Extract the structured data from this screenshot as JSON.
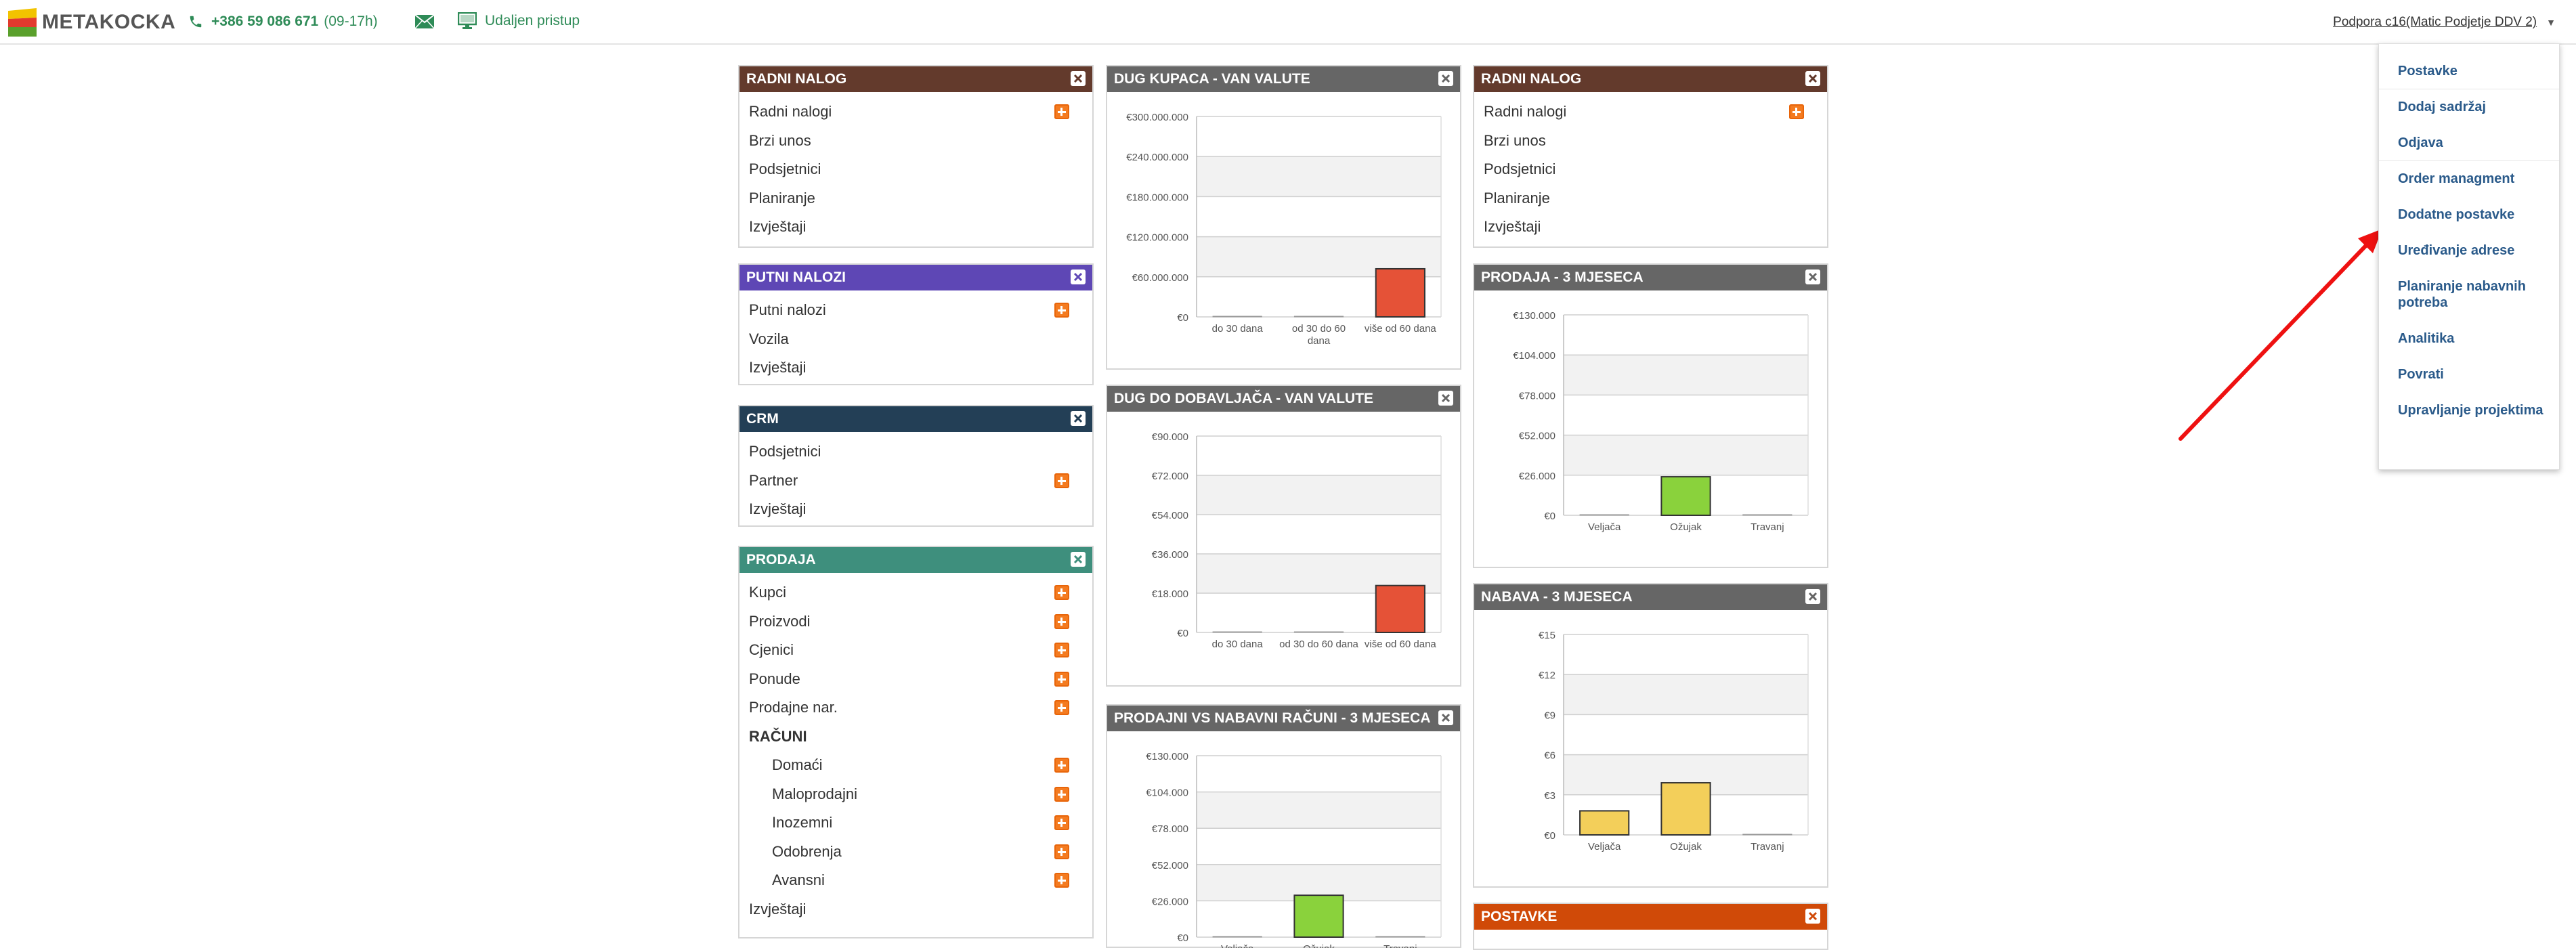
{
  "header": {
    "logo_text": "METAKOCKA",
    "phone": "+386 59 086 671",
    "hours": "(09-17h)",
    "remote_label": "Udaljen pristup",
    "user": "Podpora c16(Matic Podjetje DDV 2)"
  },
  "colors": {
    "radni_nalog": "#633a2c",
    "putni_nalozi": "#5e47b5",
    "crm": "#233f56",
    "prodaja": "#3e8f7d",
    "chart_header": "#666666",
    "postavke": "#d04a08",
    "bar_red": "#e55237",
    "bar_green": "#8ad23c",
    "bar_yellow": "#f3cf5a"
  },
  "col1": {
    "radni_nalog": {
      "title": "RADNI NALOG",
      "items": [
        "Radni nalogi",
        "Brzi unos",
        "Podsjetnici",
        "Planiranje",
        "Izvještaji"
      ]
    },
    "putni_nalozi": {
      "title": "PUTNI NALOZI",
      "items": [
        "Putni nalozi",
        "Vozila",
        "Izvještaji"
      ]
    },
    "crm": {
      "title": "CRM",
      "items": [
        "Podsjetnici",
        "Partner",
        "Izvještaji"
      ]
    },
    "prodaja": {
      "title": "PRODAJA",
      "items": [
        "Kupci",
        "Proizvodi",
        "Cjenici",
        "Ponude",
        "Prodajne nar."
      ],
      "section": "RAČUNI",
      "sub_items": [
        "Domaći",
        "Maloprodajni",
        "Inozemni",
        "Odobrenja",
        "Avansni"
      ],
      "footer": "Izvještaji"
    }
  },
  "col2": {
    "dug_kupaca": {
      "title": "DUG KUPACA - VAN VALUTE"
    },
    "dug_dobavljaca": {
      "title": "DUG DO DOBAVLJAČA - VAN VALUTE"
    },
    "prodajni_vs_nabavni": {
      "title": "PRODAJNI VS NABAVNI RAČUNI - 3 MJESECA"
    }
  },
  "col3": {
    "radni_nalog": {
      "title": "RADNI NALOG",
      "items": [
        "Radni nalogi",
        "Brzi unos",
        "Podsjetnici",
        "Planiranje",
        "Izvještaji"
      ]
    },
    "prodaja3": {
      "title": "PRODAJA - 3 MJESECA"
    },
    "nabava3": {
      "title": "NABAVA - 3 MJESECA"
    },
    "postavke": {
      "title": "POSTAVKE"
    }
  },
  "menu": {
    "items": [
      "Postavke",
      "Dodaj sadržaj",
      "Odjava",
      "Order managment",
      "Dodatne postavke",
      "Uređivanje adrese",
      "Planiranje nabavnih potreba",
      "Analitika",
      "Povrati",
      "Upravljanje projektima"
    ]
  },
  "chart_data": [
    {
      "type": "bar",
      "categories": [
        "do 30 dana",
        "od 30 do 60 dana",
        "više od 60 dana"
      ],
      "values": [
        0,
        0,
        72000000
      ],
      "yticks": [
        "€0",
        "€60.000.000",
        "€120.000.000",
        "€180.000.000",
        "€240.000.000",
        "€300.000.000"
      ],
      "ylim": [
        0,
        300000000
      ],
      "grid": true
    },
    {
      "type": "bar",
      "categories": [
        "do 30 dana",
        "od 30 do 60 dana",
        "više od 60 dana"
      ],
      "values": [
        0,
        0,
        21500
      ],
      "yticks": [
        "€0",
        "€18.000",
        "€36.000",
        "€54.000",
        "€72.000",
        "€90.000"
      ],
      "ylim": [
        0,
        90000
      ],
      "grid": true
    },
    {
      "type": "bar",
      "categories": [
        "Veljača",
        "Ožujak",
        "Travanj"
      ],
      "values": [
        0,
        30000,
        0
      ],
      "yticks": [
        "€0",
        "€26.000",
        "€52.000",
        "€78.000",
        "€104.000",
        "€130.000"
      ],
      "ylim": [
        0,
        130000
      ],
      "grid": true
    },
    {
      "type": "bar",
      "categories": [
        "Veljača",
        "Ožujak",
        "Travanj"
      ],
      "values": [
        0,
        25000,
        0
      ],
      "yticks": [
        "€0",
        "€26.000",
        "€52.000",
        "€78.000",
        "€104.000",
        "€130.000"
      ],
      "ylim": [
        0,
        130000
      ],
      "grid": true
    },
    {
      "type": "bar",
      "categories": [
        "Veljača",
        "Ožujak",
        "Travanj"
      ],
      "values": [
        1.8,
        3.9,
        0
      ],
      "yticks": [
        "€0",
        "€3",
        "€6",
        "€9",
        "€12",
        "€15"
      ],
      "ylim": [
        0,
        15
      ],
      "grid": true
    }
  ]
}
